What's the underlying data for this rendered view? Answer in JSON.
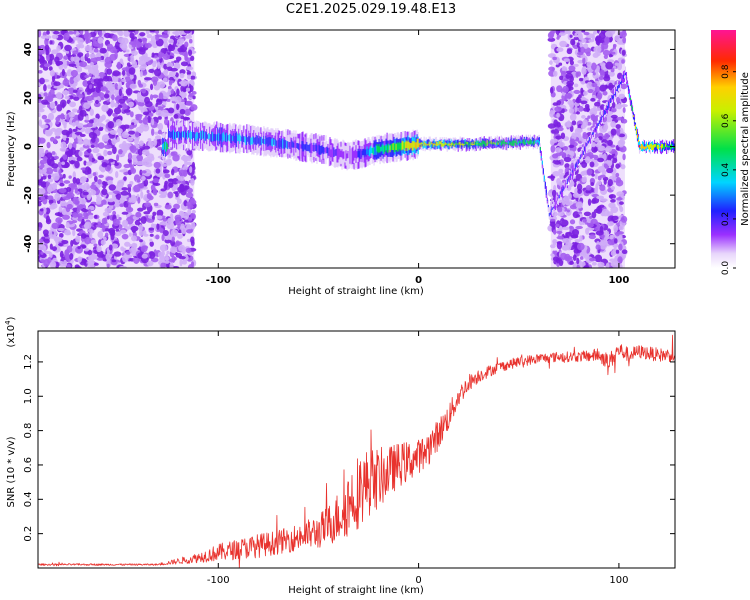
{
  "figure_title": "C2E1.2025.029.19.48.E13",
  "colors": {
    "snr_line": "#e8322d",
    "axis": "#000000",
    "background": "#ffffff",
    "colormap": [
      "#ffffff",
      "#d9c2f7",
      "#8a2be2",
      "#1a1aff",
      "#00e5ff",
      "#00e04a",
      "#f6f600",
      "#ff2a00",
      "#ff1493"
    ]
  },
  "chart_data": [
    {
      "type": "heatmap",
      "title": "",
      "xlabel": "Height of straight line (km)",
      "ylabel": "Frequency (Hz)",
      "xlim": [
        -190,
        128
      ],
      "ylim": [
        -50,
        48
      ],
      "xticks": [
        "-100",
        "0",
        "100"
      ],
      "yticks": [
        "-40",
        "-20",
        "0",
        "20",
        "40"
      ],
      "grid": false,
      "colorbar": {
        "label": "Normalized spectral amplitude",
        "range": [
          0.0,
          0.97
        ],
        "ticks": [
          "0.0",
          "0.2",
          "0.4",
          "0.6",
          "0.8"
        ]
      },
      "noise_regions_km": [
        [
          -190,
          -112
        ],
        [
          66,
          103
        ]
      ],
      "signal_track": [
        {
          "x": -125,
          "freq_hz": 5,
          "amplitude": 0.35
        },
        {
          "x": -100,
          "freq_hz": 4,
          "amplitude": 0.4
        },
        {
          "x": -75,
          "freq_hz": 2,
          "amplitude": 0.35
        },
        {
          "x": -50,
          "freq_hz": -1,
          "amplitude": 0.3
        },
        {
          "x": -35,
          "freq_hz": -4,
          "amplitude": 0.2
        },
        {
          "x": -20,
          "freq_hz": -1,
          "amplitude": 0.5
        },
        {
          "x": 0,
          "freq_hz": 1,
          "amplitude": 0.75
        },
        {
          "x": 25,
          "freq_hz": 1,
          "amplitude": 0.6
        },
        {
          "x": 60,
          "freq_hz": 2,
          "amplitude": 0.5
        },
        {
          "x": 65,
          "freq_hz": -28,
          "amplitude": 0.3
        },
        {
          "x": 103,
          "freq_hz": 30,
          "amplitude": 0.3
        },
        {
          "x": 110,
          "freq_hz": 0,
          "amplitude": 0.8
        },
        {
          "x": 128,
          "freq_hz": 0,
          "amplitude": 0.5
        }
      ]
    },
    {
      "type": "line",
      "title": "",
      "xlabel": "Height of straight line (km)",
      "ylabel": "SNR (10 * v/v)",
      "y_scale_label": "(x10",
      "y_scale_exponent": "4",
      "xlim": [
        -190,
        128
      ],
      "ylim": [
        0,
        1.38
      ],
      "xticks": [
        "-100",
        "0",
        "100"
      ],
      "yticks": [
        "0.2",
        "0.4",
        "0.6",
        "0.8",
        "1.0",
        "1.2"
      ],
      "grid": false,
      "series": [
        {
          "x": [
            -190,
            -160,
            -130,
            -110,
            -100,
            -90,
            -80,
            -70,
            -60,
            -50,
            -45,
            -40,
            -35,
            -30,
            -25,
            -20,
            -15,
            -10,
            -5,
            0,
            5,
            10,
            15,
            20,
            25,
            30,
            40,
            50,
            60,
            70,
            80,
            90,
            95,
            100,
            105,
            110,
            115,
            120,
            128
          ],
          "y": [
            0.02,
            0.02,
            0.02,
            0.06,
            0.09,
            0.11,
            0.13,
            0.15,
            0.18,
            0.21,
            0.25,
            0.3,
            0.38,
            0.45,
            0.5,
            0.52,
            0.56,
            0.6,
            0.62,
            0.65,
            0.7,
            0.78,
            0.88,
            1.0,
            1.08,
            1.12,
            1.17,
            1.2,
            1.22,
            1.23,
            1.23,
            1.24,
            1.2,
            1.27,
            1.24,
            1.26,
            1.25,
            1.24,
            1.24
          ],
          "noise_amplitude": [
            0.005,
            0.005,
            0.005,
            0.03,
            0.05,
            0.06,
            0.07,
            0.07,
            0.08,
            0.1,
            0.12,
            0.15,
            0.2,
            0.22,
            0.2,
            0.18,
            0.15,
            0.13,
            0.12,
            0.1,
            0.1,
            0.09,
            0.08,
            0.06,
            0.05,
            0.04,
            0.03,
            0.03,
            0.03,
            0.03,
            0.03,
            0.04,
            0.05,
            0.05,
            0.04,
            0.04,
            0.04,
            0.04,
            0.04
          ]
        }
      ]
    }
  ]
}
